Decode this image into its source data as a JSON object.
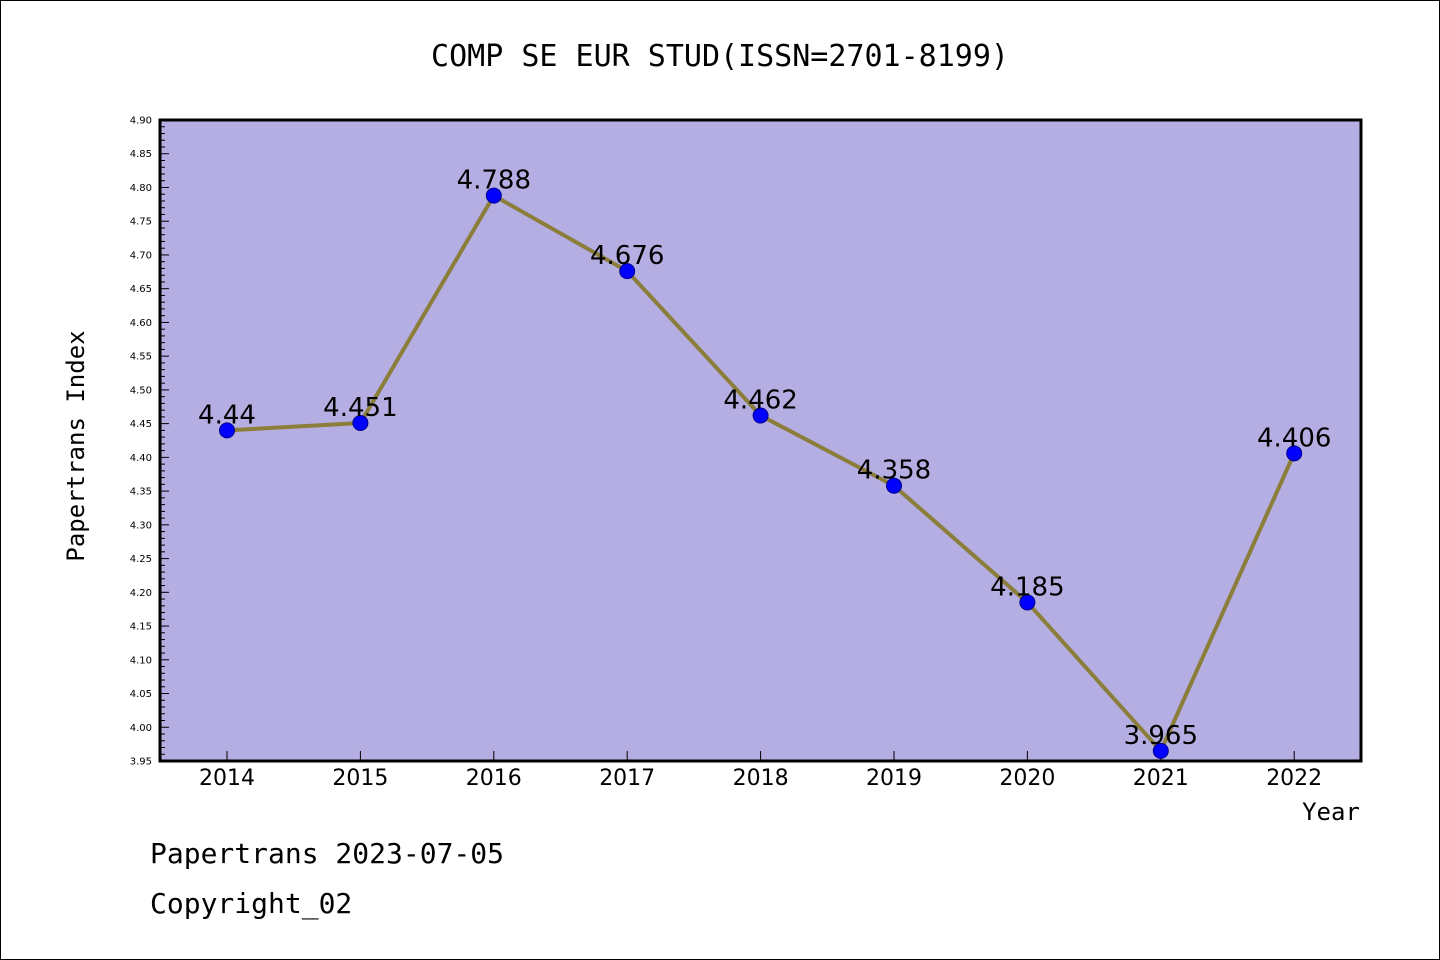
{
  "footer": {
    "line1": "Papertrans 2023-07-05",
    "line2": "Copyright_02"
  },
  "colors": {
    "plot_background": "#b5aee2",
    "line": "#8b7d3a",
    "marker": "#0000ff"
  },
  "chart_data": {
    "type": "line",
    "title": "COMP SE EUR STUD(ISSN=2701-8199)",
    "xlabel": "Year",
    "ylabel": "Papertrans Index",
    "x": [
      "2014",
      "2015",
      "2016",
      "2017",
      "2018",
      "2019",
      "2020",
      "2021",
      "2022"
    ],
    "series": [
      {
        "values": [
          4.44,
          4.451,
          4.788,
          4.676,
          4.462,
          4.358,
          4.185,
          3.965,
          4.406
        ],
        "labels": [
          "4.44",
          "4.451",
          "4.788",
          "4.676",
          "4.462",
          "4.358",
          "4.185",
          "3.965",
          "4.406"
        ]
      }
    ],
    "ylim": [
      3.95,
      4.9
    ],
    "yticks": [
      "3.95",
      "4.00",
      "4.05",
      "4.10",
      "4.15",
      "4.20",
      "4.25",
      "4.30",
      "4.35",
      "4.40",
      "4.45",
      "4.50",
      "4.55",
      "4.60",
      "4.65",
      "4.70",
      "4.75",
      "4.80",
      "4.85",
      "4.90"
    ],
    "grid": false,
    "legend": "none"
  }
}
